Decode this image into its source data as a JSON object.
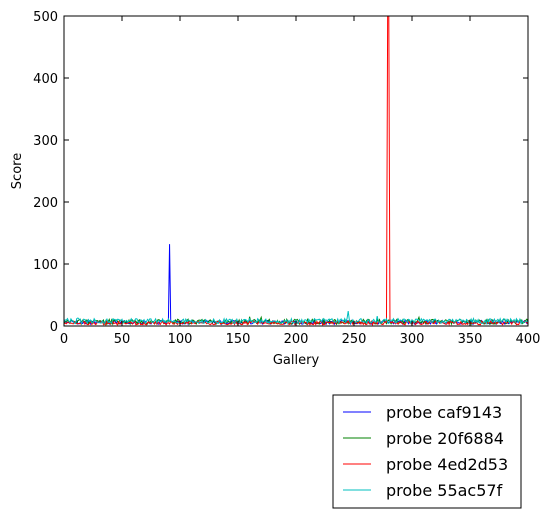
{
  "chart_data": {
    "type": "line",
    "xlabel": "Gallery",
    "ylabel": "Score",
    "xlim": [
      0,
      400
    ],
    "ylim": [
      0,
      500
    ],
    "xticks": [
      0,
      50,
      100,
      150,
      200,
      250,
      300,
      350,
      400
    ],
    "yticks": [
      0,
      100,
      200,
      300,
      400,
      500
    ],
    "grid": false,
    "legend_position": "below-right",
    "series": [
      {
        "name": "probe caf9143",
        "color": "#0000ff",
        "baseline": 6,
        "noise": 3,
        "seed": 11,
        "spikes": [
          {
            "x": 90,
            "y": 8
          },
          {
            "x": 91,
            "y": 132
          },
          {
            "x": 92,
            "y": 8
          }
        ]
      },
      {
        "name": "probe 20f6884",
        "color": "#008000",
        "baseline": 7,
        "noise": 4,
        "seed": 23,
        "spikes": [
          {
            "x": 160,
            "y": 15
          },
          {
            "x": 170,
            "y": 14
          },
          {
            "x": 306,
            "y": 14
          }
        ]
      },
      {
        "name": "probe 4ed2d53",
        "color": "#ff0000",
        "baseline": 5,
        "noise": 3,
        "seed": 37,
        "spikes": [
          {
            "x": 278,
            "y": 6
          },
          {
            "x": 279,
            "y": 500
          },
          {
            "x": 280,
            "y": 500
          },
          {
            "x": 281,
            "y": 6
          }
        ]
      },
      {
        "name": "probe 55ac57f",
        "color": "#00bfbf",
        "baseline": 8,
        "noise": 4,
        "seed": 53,
        "spikes": [
          {
            "x": 12,
            "y": 13
          },
          {
            "x": 245,
            "y": 24
          },
          {
            "x": 270,
            "y": 16
          }
        ]
      }
    ]
  }
}
